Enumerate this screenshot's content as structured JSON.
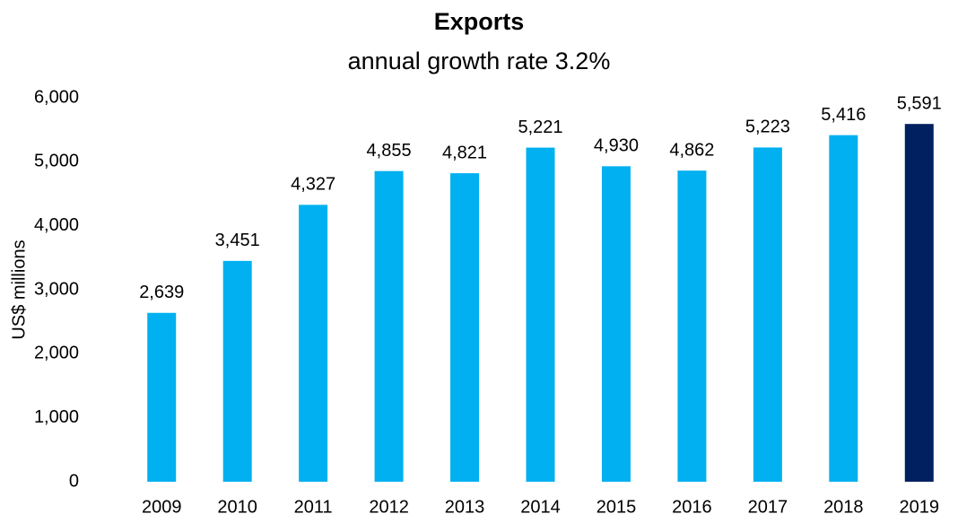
{
  "chart_data": {
    "type": "bar",
    "title": "Exports",
    "subtitle": "annual growth rate 3.2%",
    "y_label": "US$ millions",
    "categories": [
      "2009",
      "2010",
      "2011",
      "2012",
      "2013",
      "2014",
      "2015",
      "2016",
      "2017",
      "2018",
      "2019"
    ],
    "values": [
      2639,
      3451,
      4327,
      4855,
      4821,
      5221,
      4930,
      4862,
      5223,
      5416,
      5591
    ],
    "value_labels": [
      "2,639",
      "3,451",
      "4,327",
      "4,855",
      "4,821",
      "5,221",
      "4,930",
      "4,862",
      "5,223",
      "5,416",
      "5,591"
    ],
    "colors": [
      "#00b0f0",
      "#00b0f0",
      "#00b0f0",
      "#00b0f0",
      "#00b0f0",
      "#00b0f0",
      "#00b0f0",
      "#00b0f0",
      "#00b0f0",
      "#00b0f0",
      "#002060"
    ],
    "ylim": [
      0,
      6000
    ],
    "yticks": [
      0,
      {
        "value": 1000,
        "label": "1,000"
      },
      {
        "value": 2000,
        "label": "2,000"
      },
      {
        "value": 3000,
        "label": "3,000"
      },
      {
        "value": 4000,
        "label": "4,000"
      },
      {
        "value": 5000,
        "label": "5,000"
      },
      {
        "value": 6000,
        "label": "6,000"
      }
    ],
    "grid": false
  }
}
